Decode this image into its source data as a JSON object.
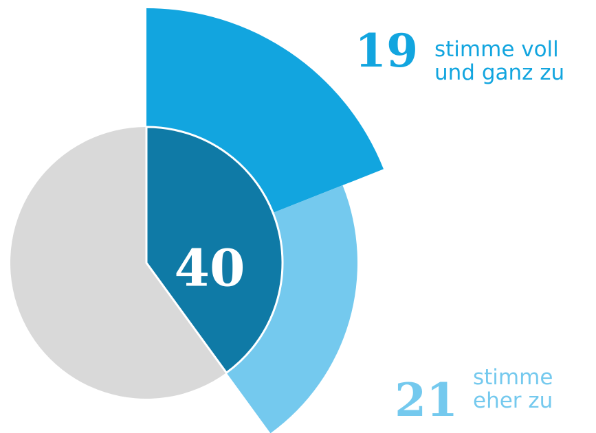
{
  "chart_data": {
    "type": "pie",
    "total": 40,
    "total_color": "#0f7aa6",
    "rest_color": "#d9d9d9",
    "scale": 100,
    "series": [
      {
        "name": [
          "stimme voll",
          "und ganz zu"
        ],
        "value": 19,
        "color": "#12a5df",
        "text_color": "#12a5df"
      },
      {
        "name": [
          "stimme",
          "eher zu"
        ],
        "value": 21,
        "color": "#74c9ee",
        "text_color": "#74c9ee"
      }
    ]
  }
}
